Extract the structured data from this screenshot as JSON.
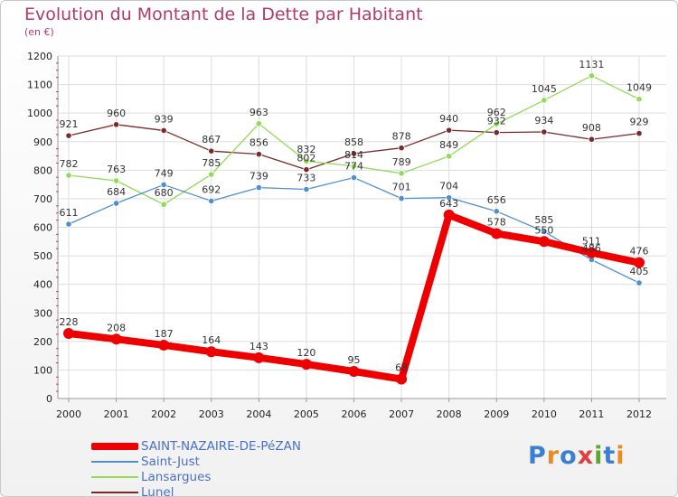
{
  "header": {
    "title": "Evolution du Montant de la Dette par Habitant",
    "subtitle": "(en €)"
  },
  "logo": {
    "text": "Proxiti",
    "colors": [
      "#3a7fd0",
      "#e98a22",
      "#3a7fd0",
      "#e04040",
      "#5aa830",
      "#3a7fd0",
      "#e98a22"
    ]
  },
  "chart_data": {
    "type": "line",
    "title": "Evolution du Montant de la Dette par Habitant",
    "subtitle": "(en €)",
    "x": [
      "2000",
      "2001",
      "2002",
      "2003",
      "2004",
      "2005",
      "2006",
      "2007",
      "2008",
      "2009",
      "2010",
      "2011",
      "2012"
    ],
    "ylim": [
      0,
      1200
    ],
    "yticks": [
      0,
      100,
      200,
      300,
      400,
      500,
      600,
      700,
      800,
      900,
      1000,
      1100,
      1200
    ],
    "grid": true,
    "legend_position": "bottom-left",
    "series": [
      {
        "name": "SAINT-NAZAIRE-DE-PéZAN",
        "color": "#ee0000",
        "values": [
          228,
          208,
          187,
          164,
          143,
          120,
          95,
          68,
          643,
          578,
          550,
          511,
          476
        ]
      },
      {
        "name": "Saint-Just",
        "color": "#4f8fcc",
        "values": [
          611,
          684,
          749,
          692,
          739,
          733,
          774,
          701,
          704,
          656,
          585,
          486,
          405
        ]
      },
      {
        "name": "Lansargues",
        "color": "#8fdc55",
        "values": [
          782,
          763,
          680,
          785,
          963,
          832,
          814,
          789,
          849,
          962,
          1045,
          1131,
          1049
        ]
      },
      {
        "name": "Lunel",
        "color": "#7a2a2a",
        "values": [
          921,
          960,
          939,
          867,
          856,
          802,
          858,
          878,
          940,
          932,
          934,
          908,
          929
        ]
      }
    ]
  }
}
